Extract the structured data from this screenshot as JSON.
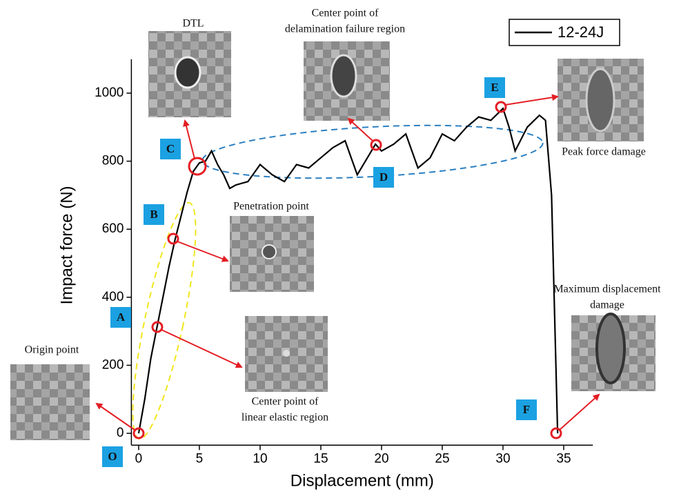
{
  "chart_data": {
    "type": "line",
    "x_label": "Displacement (mm)",
    "y_label": "Impact force (N)",
    "xlim": [
      -0.6,
      37.4
    ],
    "ylim": [
      -35,
      1100
    ],
    "xticks": [
      0,
      5,
      10,
      15,
      20,
      25,
      30,
      35
    ],
    "yticks": [
      0,
      200,
      400,
      600,
      800,
      1000
    ],
    "legend": "top-right",
    "x": [
      0,
      0.5,
      1,
      1.5,
      2,
      2.5,
      3,
      3.5,
      4,
      4.5,
      5,
      5.5,
      6,
      6.5,
      7,
      7.5,
      8,
      9,
      10,
      11,
      12,
      13,
      14,
      15,
      16,
      17,
      18,
      19,
      19.5,
      20,
      21,
      22,
      23,
      24,
      25,
      26,
      27,
      28,
      29,
      30,
      30.5,
      31,
      32,
      33,
      33.5,
      34,
      34.5
    ],
    "series": [
      {
        "name": "12-24J",
        "color": "#000000",
        "values": [
          0,
          100,
          220,
          310,
          400,
          490,
          570,
          640,
          710,
          770,
          795,
          800,
          830,
          790,
          760,
          720,
          730,
          740,
          790,
          760,
          740,
          790,
          780,
          810,
          840,
          860,
          760,
          820,
          850,
          830,
          850,
          880,
          780,
          810,
          880,
          860,
          900,
          930,
          920,
          955,
          900,
          830,
          900,
          935,
          920,
          700,
          0
        ]
      }
    ],
    "annotations": [
      [
        "DTL"
      ],
      [
        "Center point of",
        "delamination failure region"
      ],
      [
        "Penetration point"
      ],
      [
        "Center point of",
        "linear elastic region"
      ],
      [
        "Peak force damage"
      ],
      [
        "Maximum displacement",
        "damage"
      ],
      [
        "Origin point"
      ]
    ],
    "point_labels": [
      "O",
      "A",
      "B",
      "C",
      "D",
      "E",
      "F"
    ]
  }
}
